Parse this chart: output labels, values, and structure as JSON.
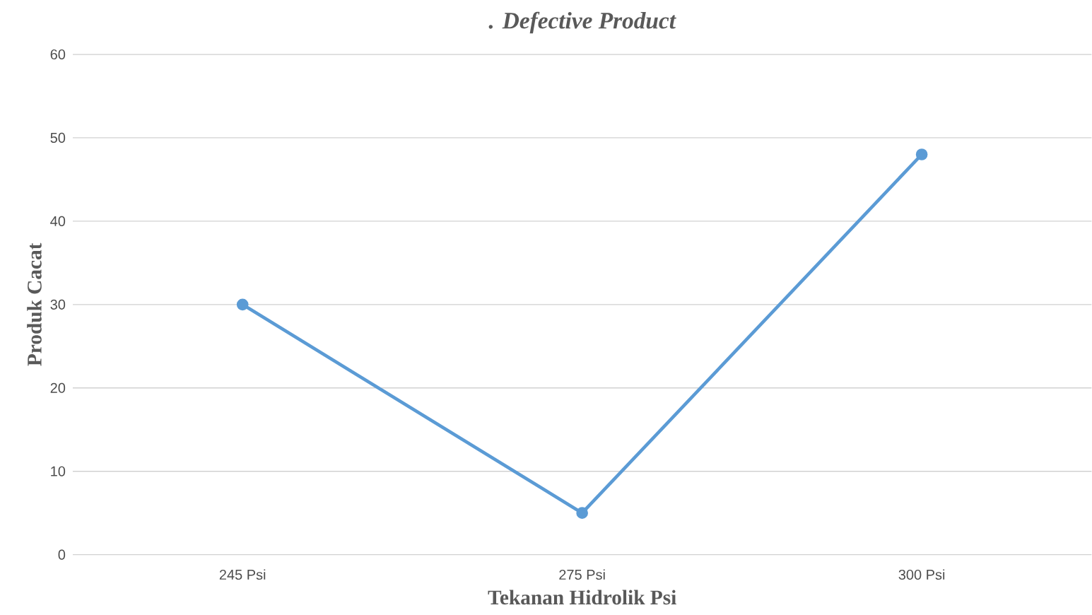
{
  "chart_data": {
    "type": "line",
    "title": ". Defective Product",
    "xlabel": "Tekanan Hidrolik Psi",
    "ylabel": "Produk Cacat",
    "categories": [
      "245 Psi",
      "275 Psi",
      "300 Psi"
    ],
    "series": [
      {
        "color": "#5b9bd5",
        "values": [
          30,
          5,
          48
        ]
      }
    ],
    "ylim": [
      0,
      60
    ],
    "yticks": [
      0,
      10,
      20,
      30,
      40,
      50,
      60
    ],
    "grid": "y",
    "marker": "circle",
    "line_style": "solid"
  }
}
